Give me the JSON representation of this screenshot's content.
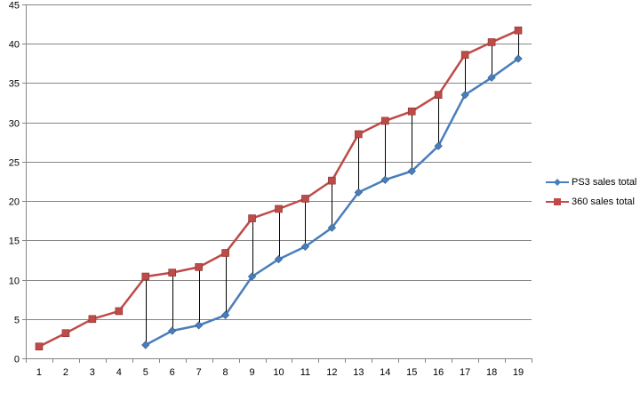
{
  "chart_data": {
    "type": "line",
    "title": "",
    "xlabel": "",
    "ylabel": "",
    "x": [
      1,
      2,
      3,
      4,
      5,
      6,
      7,
      8,
      9,
      10,
      11,
      12,
      13,
      14,
      15,
      16,
      17,
      18,
      19
    ],
    "ylim": [
      0,
      45
    ],
    "yticks": [
      0,
      5,
      10,
      15,
      20,
      25,
      30,
      35,
      40,
      45
    ],
    "grid": "horizontal",
    "legend_position": "right",
    "drop_lines": true,
    "series": [
      {
        "name": "PS3 sales total",
        "color": "#4a7ebb",
        "marker": "diamond",
        "values": [
          null,
          null,
          null,
          null,
          1.7,
          3.5,
          4.2,
          5.5,
          10.4,
          12.6,
          14.2,
          16.6,
          21.1,
          22.7,
          23.8,
          27.0,
          33.5,
          35.7,
          38.1
        ]
      },
      {
        "name": "360 sales total",
        "color": "#be4b48",
        "marker": "square",
        "values": [
          1.5,
          3.2,
          5.0,
          6.0,
          10.4,
          10.9,
          11.6,
          13.4,
          17.8,
          19.0,
          20.3,
          22.6,
          28.5,
          30.2,
          31.4,
          33.5,
          38.6,
          40.2,
          41.7
        ]
      }
    ]
  }
}
